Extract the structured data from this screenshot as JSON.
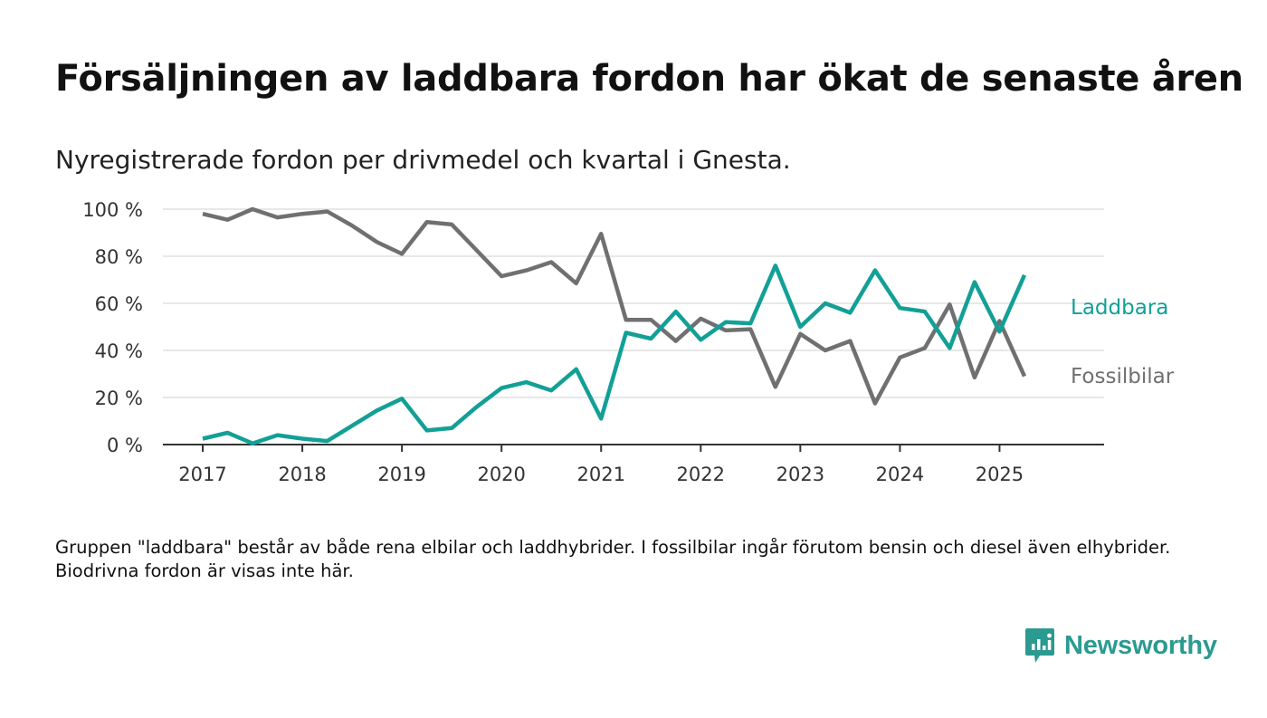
{
  "title": "Försäljningen av laddbara fordon har ökat de senaste åren",
  "subtitle": "Nyregistrerade fordon per drivmedel och kvartal i Gnesta.",
  "note": "Gruppen \"laddbara\" består av både rena elbilar och laddhybrider. I fossilbilar ingår förutom bensin och diesel även elhybrider. Biodrivna fordon är visas inte här.",
  "brand": {
    "name": "Newsworthy",
    "color": "#2b9a90"
  },
  "chart_data": {
    "type": "line",
    "title": "Försäljningen av laddbara fordon har ökat de senaste åren",
    "subtitle": "Nyregistrerade fordon per drivmedel och kvartal i Gnesta.",
    "xlabel": "",
    "ylabel": "",
    "ylim": [
      0,
      100
    ],
    "y_ticks": [
      0,
      20,
      40,
      60,
      80,
      100
    ],
    "y_tick_labels": [
      "0 %",
      "20 %",
      "40 %",
      "60 %",
      "80 %",
      "100 %"
    ],
    "x_ticks": [
      2017,
      2018,
      2019,
      2020,
      2021,
      2022,
      2023,
      2024,
      2025
    ],
    "x_tick_labels": [
      "2017",
      "2018",
      "2019",
      "2020",
      "2021",
      "2022",
      "2023",
      "2024",
      "2025"
    ],
    "xlim": [
      2016.6,
      2026.05
    ],
    "grid": true,
    "legend": "inline labels at line ends (right)",
    "x": [
      2017,
      2017.25,
      2017.5,
      2017.75,
      2018,
      2018.25,
      2018.5,
      2018.75,
      2019,
      2019.25,
      2019.5,
      2019.75,
      2020,
      2020.25,
      2020.5,
      2020.75,
      2021,
      2021.25,
      2021.5,
      2021.75,
      2022,
      2022.25,
      2022.5,
      2022.75,
      2023,
      2023.25,
      2023.5,
      2023.75,
      2024,
      2024.25,
      2024.5,
      2024.75,
      2025,
      2025.25
    ],
    "series": [
      {
        "name": "Laddbara",
        "color": "#12a096",
        "values": [
          2.5,
          5,
          0.5,
          4,
          2.5,
          1.5,
          8,
          14.5,
          19.5,
          6,
          7,
          16,
          24,
          26.5,
          23,
          32,
          11,
          47.5,
          45,
          56.5,
          44.5,
          52,
          51.5,
          76,
          50,
          60,
          56,
          74,
          58,
          56.5,
          41,
          69,
          48,
          72
        ]
      },
      {
        "name": "Fossilbilar",
        "color": "#707072",
        "values": [
          98,
          95.5,
          100,
          96.5,
          98,
          99,
          93,
          86,
          81,
          94.5,
          93.5,
          82.5,
          71.5,
          74,
          77.5,
          68.5,
          89.5,
          53,
          53,
          44,
          53.5,
          48.5,
          49,
          24.5,
          47,
          40,
          44,
          17.5,
          37,
          41,
          59.5,
          28.5,
          52.5,
          29
        ]
      }
    ]
  }
}
